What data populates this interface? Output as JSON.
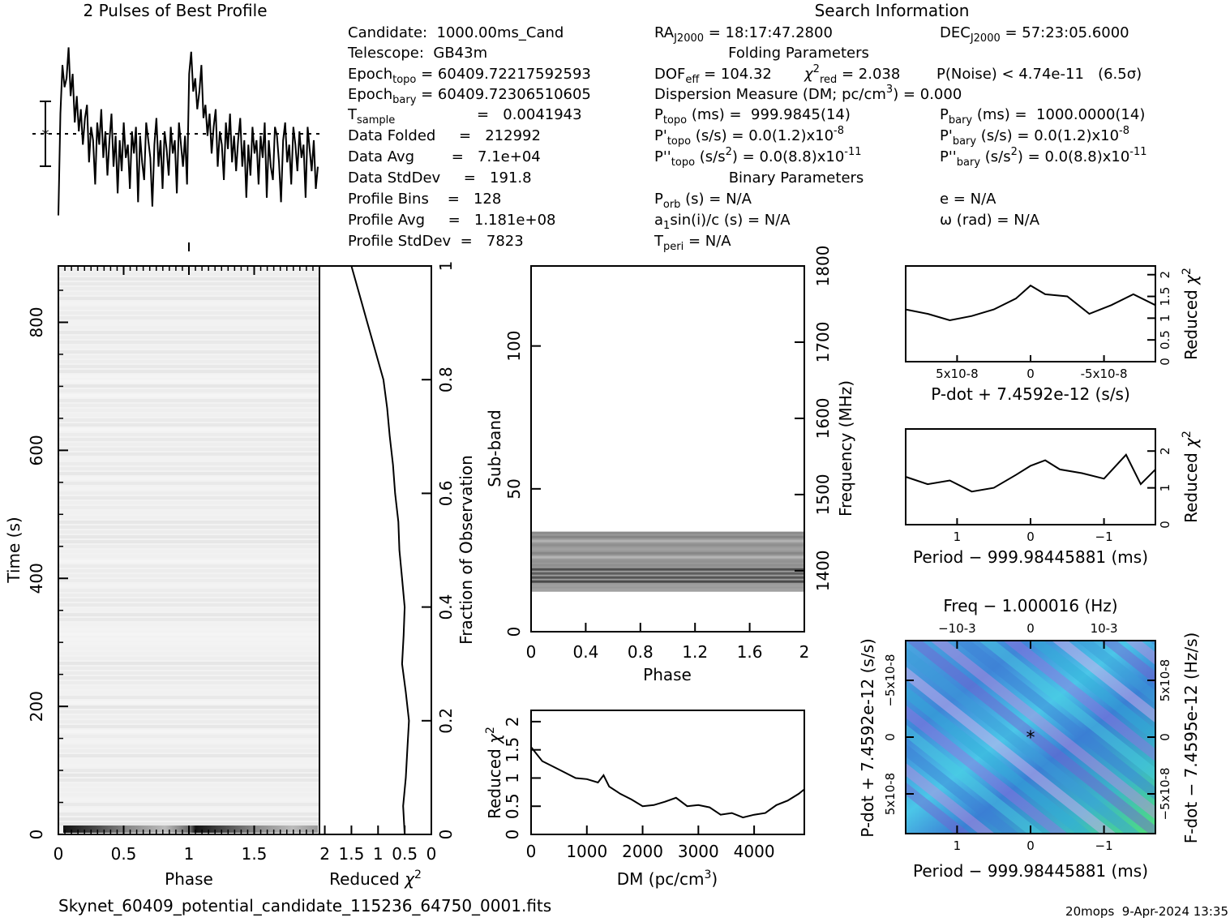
{
  "header": {
    "profile_title": "2 Pulses of Best Profile",
    "search_title": "Search Information"
  },
  "candidate_info": {
    "candidate": "Candidate:  1000.00ms_Cand",
    "telescope": "Telescope:  GB43m",
    "epoch_topo_label": "Epoch",
    "epoch_topo_sub": "topo",
    "epoch_topo_value": " = 60409.72217592593",
    "epoch_bary_label": "Epoch",
    "epoch_bary_sub": "bary",
    "epoch_bary_value": " = 60409.72306510605",
    "tsample_label": "T",
    "tsample_sub": "sample",
    "tsample_value": "=   0.0041943",
    "data_folded": "Data Folded     =   212992",
    "data_avg": "Data Avg        =   7.1e+04",
    "data_stddev": "Data StdDev     =   191.8",
    "profile_bins": "Profile Bins    =   128",
    "profile_avg": "Profile Avg     =   1.181e+08",
    "profile_stddev": "Profile StdDev  =   7823"
  },
  "search_info": {
    "ra_label": "RA",
    "ra_sub": "J2000",
    "ra_value": " = 18:17:47.2800",
    "dec_label": "DEC",
    "dec_sub": "J2000",
    "dec_value": " = 57:23:05.6000",
    "folding_title": "Folding Parameters",
    "dof_label": "DOF",
    "dof_sub": "eff",
    "dof_value": " = 104.32",
    "chi_label": "χ",
    "chi_sup": "2",
    "chi_sub": "red",
    "chi_value": " = 2.038",
    "pnoise": "P(Noise) < 4.74e-11   (6.5σ)",
    "dm_text": "Dispersion Measure (DM; pc/cm",
    "dm_sup": "3",
    "dm_value": ") = 0.000",
    "ptopo_label": "P",
    "ptopo_sub": "topo",
    "ptopo_value": " (ms) =  999.9845(14)",
    "pbary_label": "P",
    "pbary_sub": "bary",
    "pbary_value": " (ms) =  1000.0000(14)",
    "pdtopo_label": "P'",
    "pdtopo_sub": "topo",
    "pdtopo_value": " (s/s) = 0.0(1.2)x10",
    "pdtopo_exp": "-8",
    "pdbary_label": "P'",
    "pdbary_sub": "bary",
    "pdbary_value": " (s/s) = 0.0(1.2)x10",
    "pdbary_exp": "-8",
    "pddtopo_label": "P''",
    "pddtopo_sub": "topo",
    "pddtopo_value": " (s/s",
    "pddtopo_sup2": "2",
    "pddtopo_value2": ") = 0.0(8.8)x10",
    "pddtopo_exp": "-11",
    "pddbary_label": "P''",
    "pddbary_sub": "bary",
    "pddbary_value": " (s/s",
    "pddbary_sup2": "2",
    "pddbary_value2": ") = 0.0(8.8)x10",
    "pddbary_exp": "-11",
    "binary_title": "Binary Parameters",
    "porb_label": "P",
    "porb_sub": "orb",
    "porb_value": " (s) = N/A",
    "e_value": "e = N/A",
    "a1_label": "a",
    "a1_sub": "1",
    "a1_value": "sin(i)/c (s) = N/A",
    "omega_value": "ω (rad) = N/A",
    "tperi_label": "T",
    "tperi_sub": "peri",
    "tperi_value": " = N/A"
  },
  "footer": {
    "filename": "Skynet_60409_potential_candidate_115236_64750_0001.fits",
    "stamp": "20mops  9-Apr-2024 13:35"
  },
  "chart_data": [
    {
      "id": "profile",
      "type": "line",
      "title": "2 Pulses of Best Profile",
      "x_range": [
        0,
        2
      ],
      "bins": 128,
      "values": [
        -1.5,
        0.8,
        1.9,
        1.4,
        1.6,
        2.3,
        1.2,
        1.7,
        0.6,
        1.2,
        0.4,
        0.9,
        0.1,
        0.7,
        1.0,
        -0.3,
        0.5,
        0.2,
        -0.8,
        0.6,
        0.1,
        0.9,
        -0.2,
        0.4,
        -0.6,
        0.2,
        0.8,
        -0.4,
        0.3,
        -1.0,
        0.2,
        -0.5,
        0.6,
        -0.2,
        0.1,
        -0.9,
        0.4,
        -0.1,
        0.5,
        -1.2,
        0.3,
        -0.3,
        -0.7,
        0.6,
        0.2,
        -0.2,
        -1.3,
        0.1,
        0.7,
        -0.4,
        0.2,
        -0.9,
        0.4,
        0.0,
        -0.6,
        0.5,
        -0.1,
        0.2,
        -1.0,
        0.6,
        0.1,
        -0.4,
        0.3,
        -0.8,
        1.7,
        2.2,
        1.3,
        1.6,
        0.9,
        1.3,
        1.9,
        0.7,
        1.0,
        0.3,
        0.8,
        -0.1,
        0.5,
        0.9,
        -0.4,
        0.4,
        0.1,
        -0.7,
        0.6,
        0.0,
        0.8,
        -0.3,
        0.3,
        -0.5,
        0.2,
        0.7,
        -0.4,
        0.2,
        -1.1,
        0.1,
        -0.6,
        0.5,
        -0.1,
        0.2,
        -0.8,
        0.3,
        -0.2,
        0.6,
        -1.1,
        0.2,
        -0.4,
        -0.7,
        0.5,
        0.3,
        -0.3,
        -1.2,
        0.2,
        0.6,
        -0.3,
        0.1,
        -0.8,
        0.5,
        0.1,
        -0.5,
        0.4,
        -0.2,
        0.1,
        -1.1,
        0.5,
        0.0,
        -0.5,
        0.2,
        -0.9,
        -0.4
      ]
    },
    {
      "id": "time_phase",
      "type": "heatmap",
      "xlabel": "Phase",
      "ylabel": "Time (s)",
      "xticks": [
        "0",
        "0.5",
        "1",
        "1.5"
      ],
      "yticks": [
        "0",
        "200",
        "400",
        "600",
        "800"
      ],
      "x_range": [
        0,
        2
      ],
      "y_range": [
        0,
        888
      ]
    },
    {
      "id": "time_chi",
      "type": "line",
      "xlabel": "Reduced χ2",
      "ylabel": "Fraction of Observation",
      "xticks": [
        "2",
        "1.5",
        "1",
        "0.5",
        "0"
      ],
      "yticks": [
        "0",
        "0.2",
        "0.4",
        "0.6",
        "0.8",
        "1"
      ],
      "x_range": [
        2.1,
        0
      ],
      "fraction": [
        0,
        0.05,
        0.1,
        0.15,
        0.2,
        0.25,
        0.3,
        0.35,
        0.4,
        0.45,
        0.5,
        0.55,
        0.6,
        0.65,
        0.7,
        0.75,
        0.8,
        0.85,
        0.9,
        0.95,
        1.0
      ],
      "chi": [
        0.5,
        0.53,
        0.48,
        0.45,
        0.42,
        0.48,
        0.55,
        0.52,
        0.5,
        0.55,
        0.6,
        0.62,
        0.68,
        0.72,
        0.78,
        0.83,
        0.9,
        1.05,
        1.2,
        1.35,
        1.5
      ]
    },
    {
      "id": "subband_phase",
      "type": "heatmap",
      "xlabel": "Phase",
      "ylabel": "Sub-band",
      "y2label": "Frequency (MHz)",
      "xticks": [
        "0",
        "0.4",
        "0.8",
        "1.2",
        "1.6",
        "2"
      ],
      "yticks": [
        "0",
        "50",
        "100"
      ],
      "y2ticks": [
        "1400",
        "1500",
        "1600",
        "1700",
        "1800"
      ],
      "x_range": [
        0,
        2
      ],
      "y_range": [
        0,
        128
      ],
      "active_subbands": [
        14,
        35
      ],
      "freq_range": [
        1320,
        1800
      ]
    },
    {
      "id": "dm_chi",
      "type": "line",
      "xlabel": "DM (pc/cm3)",
      "ylabel": "Reduced χ2",
      "xticks": [
        "0",
        "1000",
        "2000",
        "3000",
        "4000"
      ],
      "yticks": [
        "0",
        "0.5",
        "1",
        "1.5",
        "2"
      ],
      "x_range": [
        0,
        4900
      ],
      "y_range": [
        0,
        2.2
      ],
      "dm": [
        0,
        200,
        400,
        600,
        800,
        1000,
        1200,
        1300,
        1400,
        1600,
        1800,
        2000,
        2200,
        2400,
        2600,
        2800,
        3000,
        3200,
        3400,
        3600,
        3800,
        4000,
        4200,
        4400,
        4600,
        4800,
        4900
      ],
      "chi": [
        1.55,
        1.3,
        1.2,
        1.1,
        1.0,
        0.98,
        0.92,
        1.05,
        0.85,
        0.72,
        0.62,
        0.5,
        0.52,
        0.58,
        0.65,
        0.5,
        0.52,
        0.48,
        0.35,
        0.38,
        0.3,
        0.35,
        0.38,
        0.52,
        0.6,
        0.72,
        0.8
      ]
    },
    {
      "id": "pdot_chi",
      "type": "line",
      "xlabel": "P-dot + 7.4592e-12 (s/s)",
      "ylabel": "Reduced χ2",
      "xticks": [
        "5x10-8",
        "0",
        "-5x10-8"
      ],
      "yticks": [
        "0",
        "0.5",
        "1",
        "1.5",
        "2"
      ],
      "x_range": [
        8.5e-08,
        -8.5e-08
      ],
      "y_range": [
        0,
        2.2
      ],
      "x": [
        8.5e-08,
        7e-08,
        5.5e-08,
        4e-08,
        2.5e-08,
        1e-08,
        0,
        -1e-08,
        -2.5e-08,
        -4e-08,
        -5.5e-08,
        -7e-08,
        -8.5e-08
      ],
      "chi": [
        1.2,
        1.1,
        0.95,
        1.05,
        1.2,
        1.45,
        1.75,
        1.55,
        1.5,
        1.1,
        1.3,
        1.55,
        1.3
      ]
    },
    {
      "id": "period_chi",
      "type": "line",
      "xlabel": "Period − 999.98445881 (ms)",
      "ylabel": "Reduced χ2",
      "xticks": [
        "1",
        "0",
        "−1"
      ],
      "yticks": [
        "0",
        "1",
        "2"
      ],
      "x_range": [
        1.7,
        -1.7
      ],
      "y_range": [
        0,
        2.6
      ],
      "x": [
        1.7,
        1.4,
        1.1,
        0.8,
        0.5,
        0.2,
        0,
        -0.2,
        -0.4,
        -0.7,
        -1.0,
        -1.3,
        -1.5,
        -1.7
      ],
      "chi": [
        1.3,
        1.1,
        1.2,
        0.9,
        1.0,
        1.35,
        1.6,
        1.75,
        1.5,
        1.4,
        1.25,
        1.9,
        1.1,
        1.5
      ]
    },
    {
      "id": "p_pdot",
      "type": "heatmap",
      "top_title": "Freq − 1.000016 (Hz)",
      "xlabel": "Period − 999.98445881 (ms)",
      "ylabel": "P-dot + 7.4592e-12 (s/s)",
      "y2label": "F-dot − 7.4595e-12 (Hz/s)",
      "xticks": [
        "1",
        "0",
        "−1"
      ],
      "xticks_top": [
        "−10-3",
        "0",
        "10-3"
      ],
      "yticks": [
        "5x10-8",
        "0",
        "−5x10-8"
      ],
      "y2ticks": [
        "−5x10-8",
        "0",
        "5x10-8"
      ],
      "x_range": [
        1.7,
        -1.7
      ],
      "y_range": [
        8.5e-08,
        -8.5e-08
      ],
      "best": [
        0,
        0
      ]
    }
  ]
}
